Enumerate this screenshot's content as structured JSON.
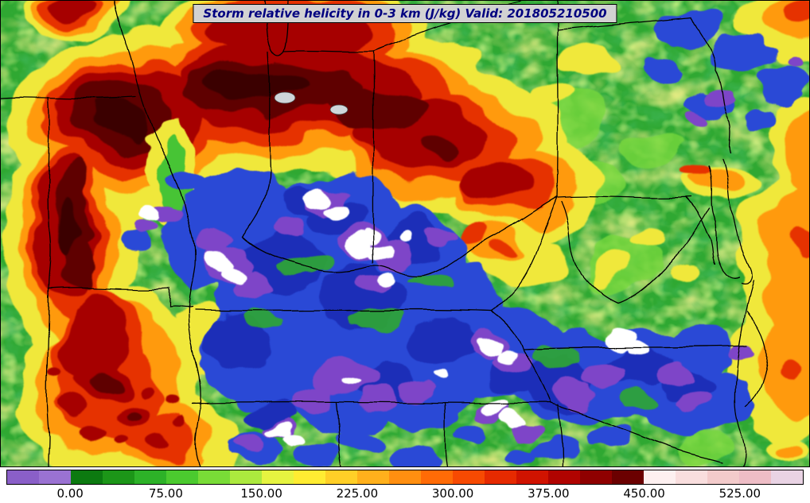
{
  "title": {
    "text": "Storm relative helicity in 0-3 km (J/kg) Valid: 201805210500"
  },
  "chart_data": {
    "type": "heatmap",
    "title": "Storm relative helicity in 0-3 km (J/kg)",
    "variable": "Storm relative helicity 0-3 km",
    "units": "J/kg",
    "valid_time": "201805210500",
    "region": "Central and eastern United States with state boundaries",
    "colorbar": {
      "orientation": "horizontal",
      "min": -50,
      "max": 575,
      "segment_size": 25,
      "tick_values": [
        0,
        75,
        150,
        225,
        300,
        375,
        450,
        525
      ],
      "tick_labels": [
        "0.00",
        "75.00",
        "150.00",
        "225.00",
        "300.00",
        "375.00",
        "450.00",
        "525.00"
      ],
      "colors": [
        "#8a5fc8",
        "#9a72d2",
        "#0c7a10",
        "#1c9618",
        "#2db228",
        "#4bca2f",
        "#79dc37",
        "#ace93e",
        "#e6f440",
        "#ffec32",
        "#ffcf27",
        "#ffb01c",
        "#ff8f10",
        "#ff6b06",
        "#f74a02",
        "#e62a00",
        "#d01300",
        "#b00300",
        "#8f0000",
        "#6b0000",
        "#fdf0f0",
        "#f9dede",
        "#f3cbcb",
        "#eebdc6",
        "#e9d3e4"
      ]
    },
    "map_colors_below_scale": [
      "#2b49d6",
      "#7e44c8",
      "#ffffff"
    ],
    "features": [
      "Broad arc of very high helicity (dark red, >375 J/kg) from eastern Iowa and Missouri across central Illinois and Indiana into Ohio",
      "Secondary high-helicity band with scattered maxima along the Missouri/Arkansas border region",
      "Large minimum (blue/purple with white cores) over Kentucky, Tennessee and the central Appalachians",
      "Moderate values (green, roughly 0-150 J/kg) over the Mid-Atlantic, Ohio Valley fringes and Southeast",
      "Locally higher values (yellow/orange/red) along the eastern edge of the domain and near Chesapeake Bay"
    ]
  },
  "style_colors": {
    "title_text": "#000080",
    "title_background": "#d2d2d2",
    "map_border": "#000000"
  }
}
